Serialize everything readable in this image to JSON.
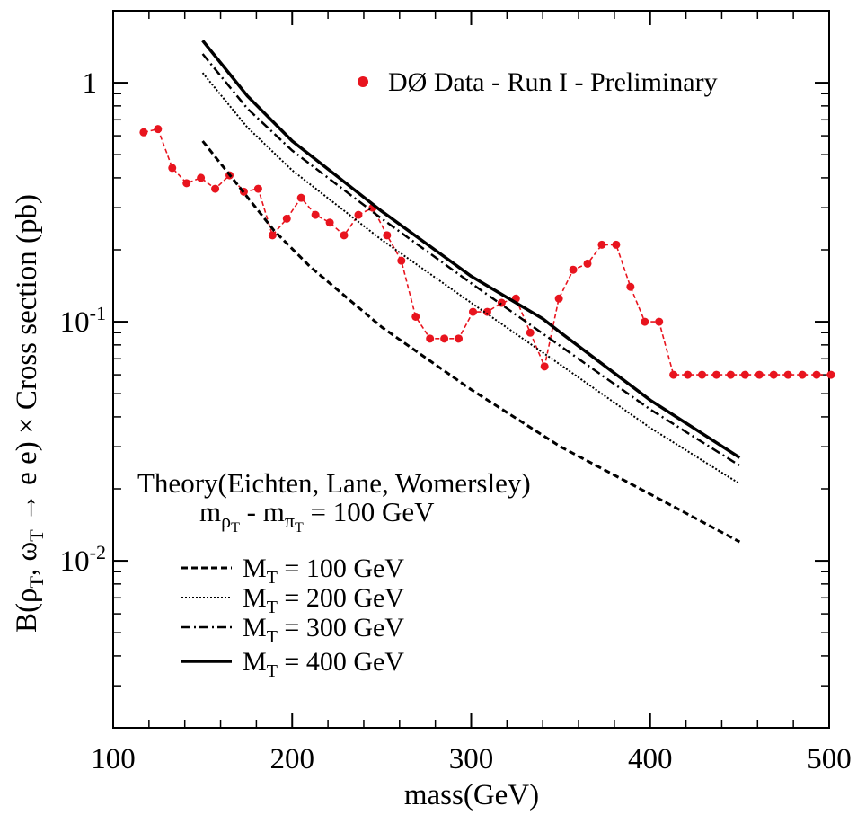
{
  "chart_data": {
    "type": "line",
    "xlabel": "mass(GeV)",
    "ylabel": "B(ρT, ωT → e e) × Cross section (pb)",
    "ylabel_parts": {
      "pre": "B(ρ",
      "sub1": "T",
      "mid": ", ω",
      "sub2": "T",
      "post": " → e e)  ×  Cross section (pb)"
    },
    "xlim": [
      100,
      500
    ],
    "ylim": [
      0.002,
      2.0
    ],
    "yscale": "log",
    "grid": false,
    "x_ticks": [
      "100",
      "200",
      "300",
      "400",
      "500"
    ],
    "y_ticks": [
      {
        "value": 1,
        "base": "1",
        "exp": ""
      },
      {
        "value": 0.1,
        "base": "10",
        "exp": "-1"
      },
      {
        "value": 0.01,
        "base": "10",
        "exp": "-2"
      }
    ],
    "data_legend": "DØ Data - Run I - Preliminary",
    "theory_title": "Theory(Eichten, Lane, Womersley)",
    "theory_condition": {
      "m1": "m",
      "m1_sub": "ρ",
      "m1_subsub": "T",
      "sep": " - ",
      "m2": "m",
      "m2_sub": "π",
      "m2_subsub": "T",
      "rest": " = 100 GeV"
    },
    "series": [
      {
        "name": "DØ Data - Run I - Preliminary",
        "style": "data",
        "color": "#e8141e",
        "x": [
          117,
          125,
          133,
          141,
          149,
          157,
          165,
          173,
          181,
          189,
          197,
          205,
          213,
          221,
          229,
          237,
          245,
          253,
          261,
          269,
          277,
          285,
          293,
          301,
          309,
          317,
          325,
          333,
          341,
          349,
          357,
          365,
          373,
          381,
          389,
          397,
          405,
          413,
          421,
          429,
          437,
          445,
          453,
          461,
          469,
          477,
          485,
          493,
          501
        ],
        "y": [
          0.62,
          0.64,
          0.44,
          0.38,
          0.4,
          0.36,
          0.41,
          0.35,
          0.36,
          0.23,
          0.27,
          0.33,
          0.28,
          0.26,
          0.23,
          0.28,
          0.3,
          0.23,
          0.18,
          0.105,
          0.085,
          0.085,
          0.085,
          0.11,
          0.11,
          0.12,
          0.125,
          0.09,
          0.065,
          0.125,
          0.165,
          0.175,
          0.21,
          0.21,
          0.14,
          0.1,
          0.1,
          0.06,
          0.06,
          0.06,
          0.06,
          0.06,
          0.06,
          0.06,
          0.06,
          0.06,
          0.06,
          0.06,
          0.06
        ]
      },
      {
        "name": "MT = 100 GeV",
        "label_main": "M",
        "label_sub": "T",
        "label_rest": " = 100 GeV",
        "style": "dashed",
        "color": "#000000",
        "x": [
          150,
          170,
          190,
          210,
          250,
          300,
          350,
          400,
          450
        ],
        "y": [
          0.57,
          0.37,
          0.24,
          0.17,
          0.095,
          0.052,
          0.03,
          0.019,
          0.012
        ]
      },
      {
        "name": "MT = 200 GeV",
        "label_main": "M",
        "label_sub": "T",
        "label_rest": " = 200 GeV",
        "style": "dotted",
        "color": "#000000",
        "x": [
          150,
          175,
          200,
          250,
          300,
          350,
          400,
          450
        ],
        "y": [
          1.1,
          0.65,
          0.43,
          0.22,
          0.12,
          0.066,
          0.036,
          0.021
        ]
      },
      {
        "name": "MT = 300 GeV",
        "label_main": "M",
        "label_sub": "T",
        "label_rest": " = 300 GeV",
        "style": "dashdot",
        "color": "#000000",
        "x": [
          150,
          175,
          200,
          250,
          300,
          350,
          400,
          450
        ],
        "y": [
          1.32,
          0.78,
          0.52,
          0.27,
          0.145,
          0.079,
          0.043,
          0.025
        ]
      },
      {
        "name": "MT = 400 GeV",
        "label_main": "M",
        "label_sub": "T",
        "label_rest": " = 400 GeV",
        "style": "solid",
        "color": "#000000",
        "x": [
          150,
          175,
          200,
          250,
          300,
          340,
          350,
          400,
          450
        ],
        "y": [
          1.5,
          0.88,
          0.57,
          0.29,
          0.155,
          0.103,
          0.09,
          0.047,
          0.027
        ]
      }
    ]
  }
}
